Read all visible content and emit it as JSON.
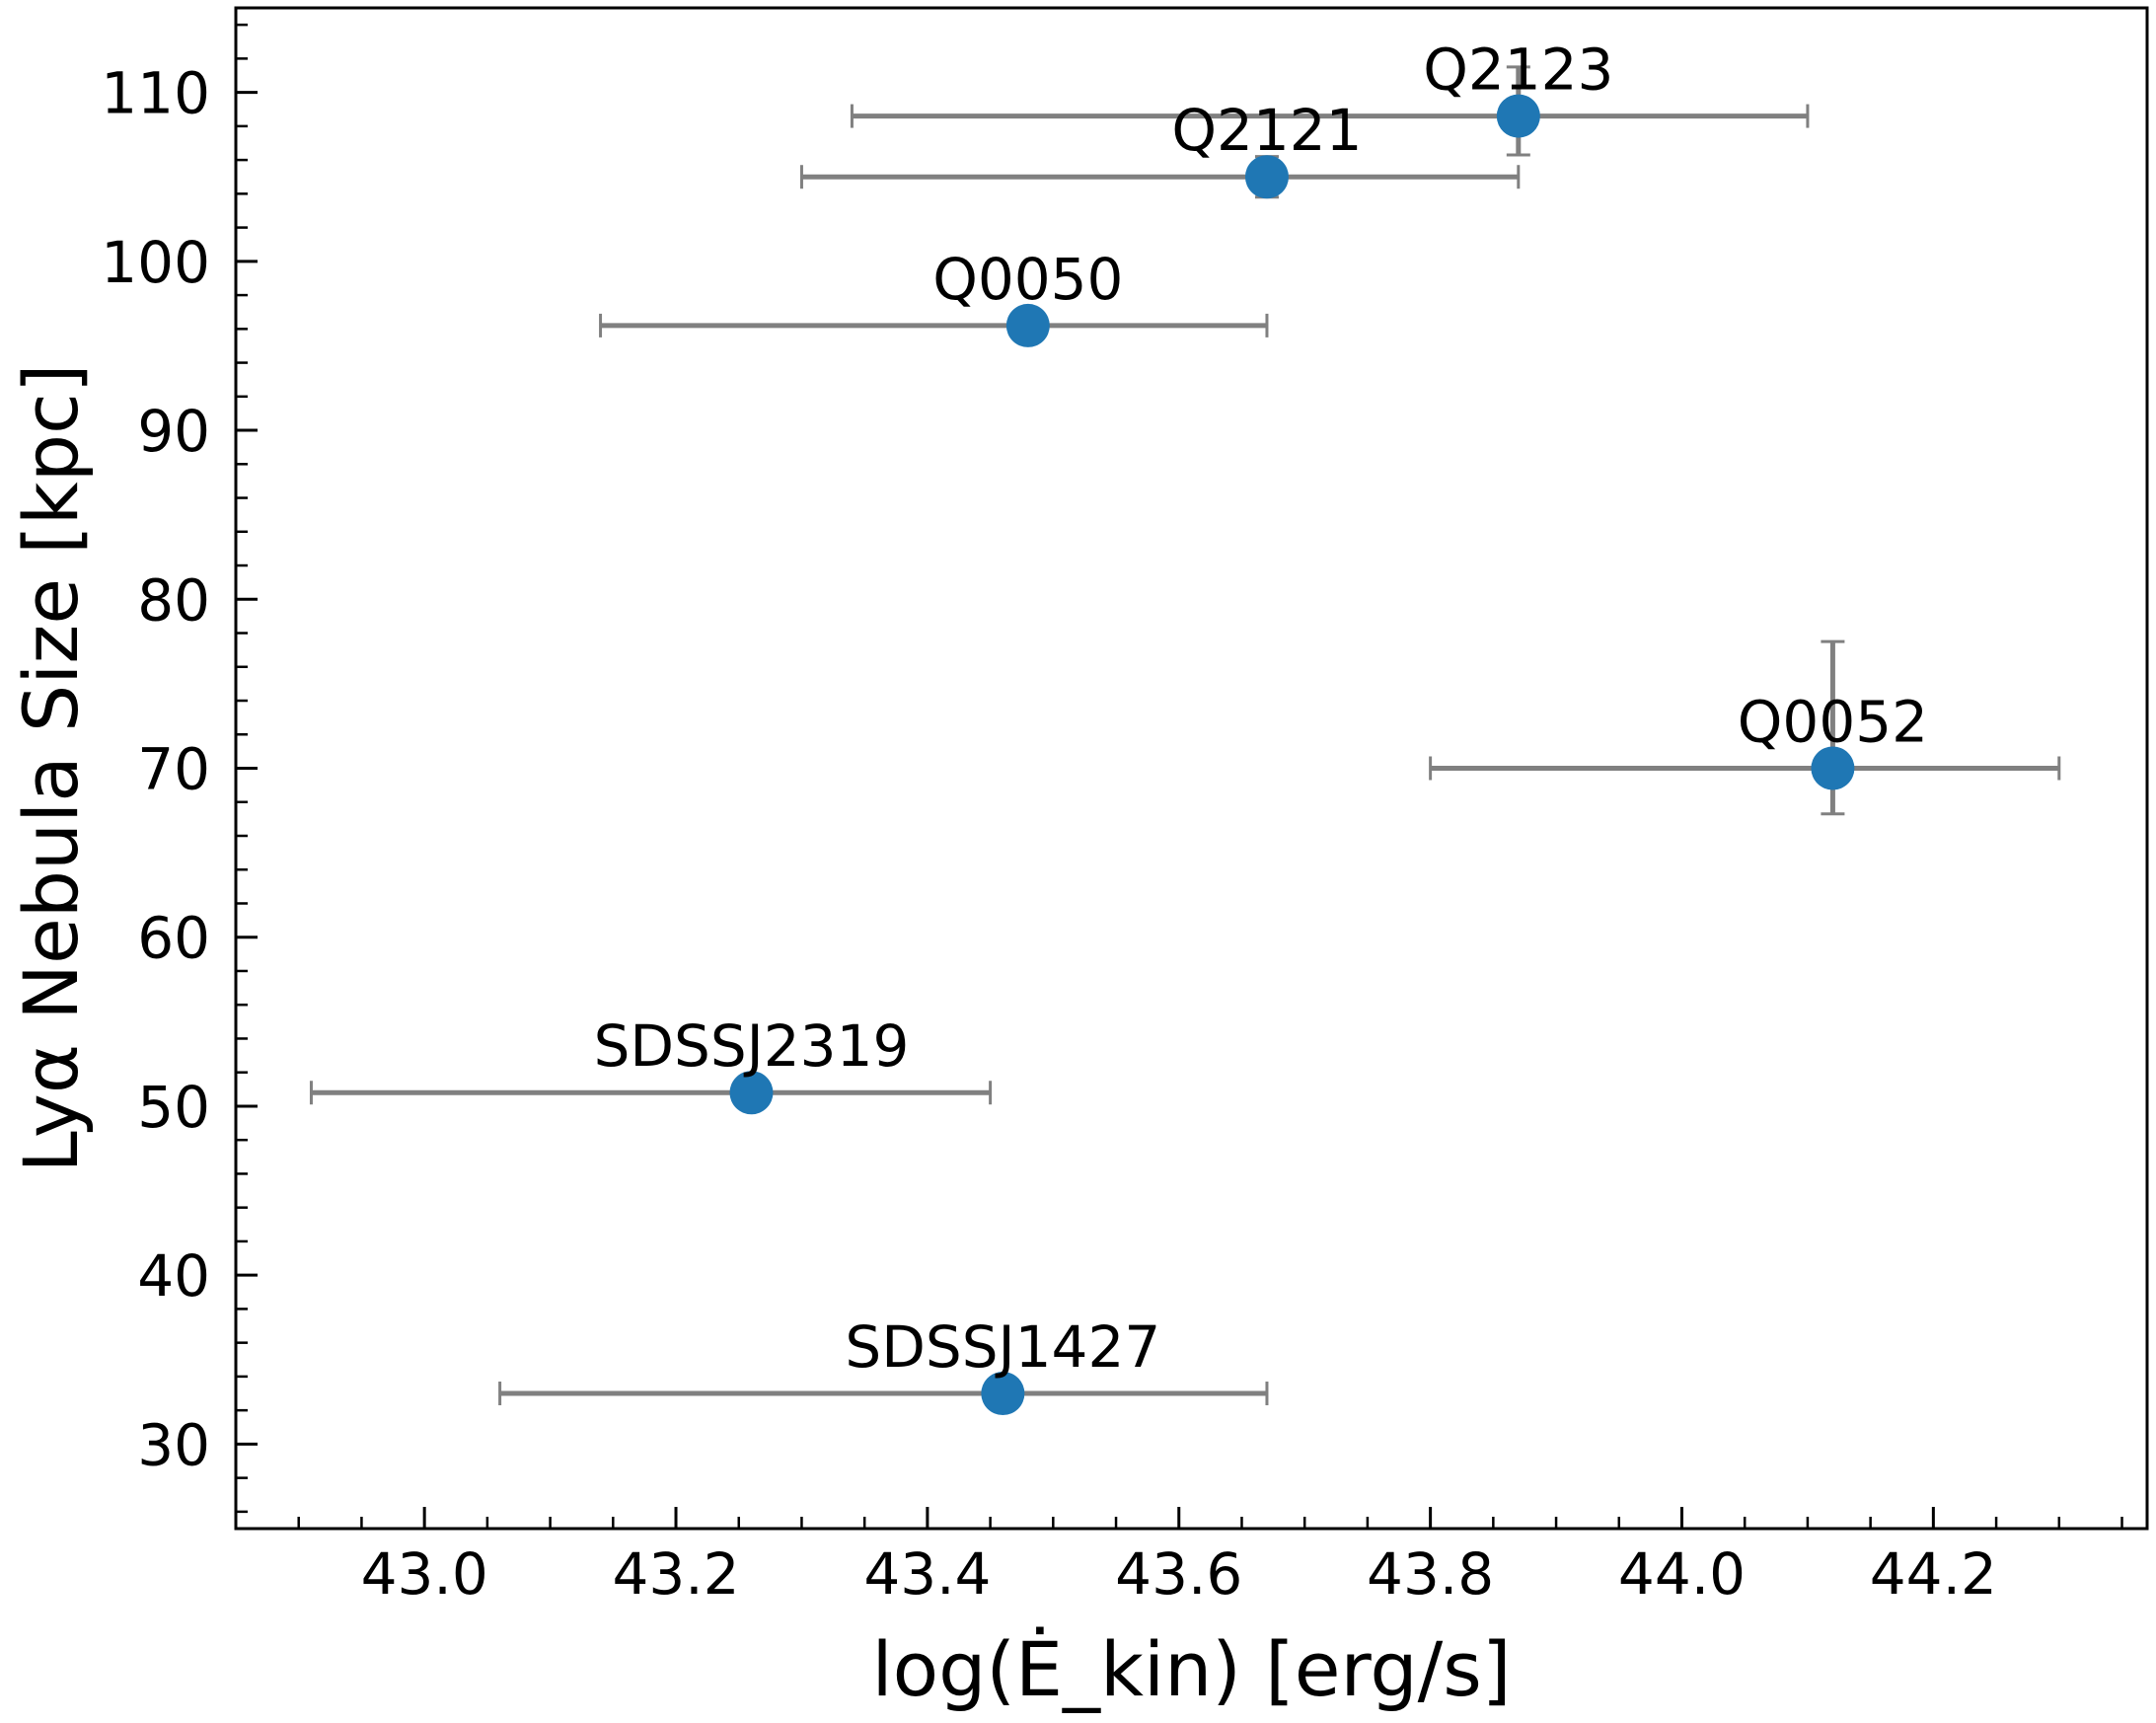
{
  "chart_data": {
    "type": "scatter",
    "xlabel": "log(Ė_kin) [erg/s]",
    "ylabel": "Lyα Nebula Size [kpc]",
    "xlim": [
      42.85,
      44.37
    ],
    "ylim": [
      25,
      115
    ],
    "xticks": [
      43.0,
      43.2,
      43.4,
      43.6,
      43.8,
      44.0,
      44.2
    ],
    "xtick_labels": [
      "43.0",
      "43.2",
      "43.4",
      "43.6",
      "43.8",
      "44.0",
      "44.2"
    ],
    "yticks": [
      30,
      40,
      50,
      60,
      70,
      80,
      90,
      100,
      110
    ],
    "ytick_labels": [
      "30",
      "40",
      "50",
      "60",
      "70",
      "80",
      "90",
      "100",
      "110"
    ],
    "grid": false,
    "marker_color": "#1f77b4",
    "errorbar_color": "#808080",
    "points": [
      {
        "label": "Q2123",
        "x": 43.87,
        "y": 108.6,
        "xerr_low": 43.34,
        "xerr_high": 44.1,
        "yerr_low": 106.3,
        "yerr_high": 111.5
      },
      {
        "label": "Q2121",
        "x": 43.67,
        "y": 105.0,
        "xerr_low": 43.3,
        "xerr_high": 43.87,
        "yerr_low": 103.8,
        "yerr_high": 106.2
      },
      {
        "label": "Q0050",
        "x": 43.48,
        "y": 96.2,
        "xerr_low": 43.14,
        "xerr_high": 43.67,
        "yerr_low": 95.5,
        "yerr_high": 96.9
      },
      {
        "label": "Q0052",
        "x": 44.12,
        "y": 70.0,
        "xerr_low": 43.8,
        "xerr_high": 44.3,
        "yerr_low": 67.3,
        "yerr_high": 77.5
      },
      {
        "label": "SDSSJ2319",
        "x": 43.26,
        "y": 50.8,
        "xerr_low": 42.91,
        "xerr_high": 43.45,
        "yerr_low": 50.2,
        "yerr_high": 51.4
      },
      {
        "label": "SDSSJ1427",
        "x": 43.46,
        "y": 33.0,
        "xerr_low": 43.06,
        "xerr_high": 43.67,
        "yerr_low": 32.4,
        "yerr_high": 33.6
      }
    ]
  }
}
